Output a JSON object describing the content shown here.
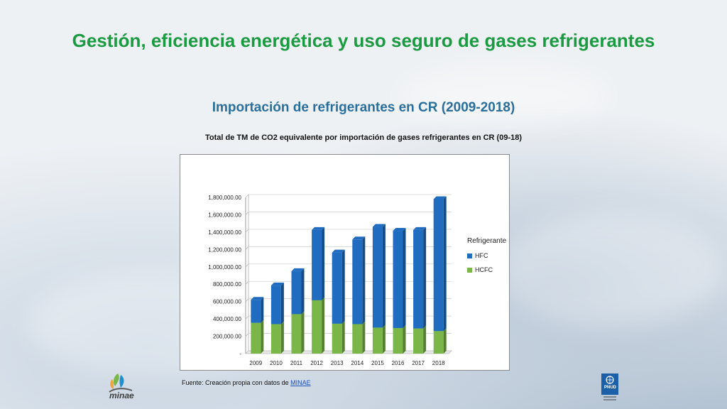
{
  "slide": {
    "title": "Gestión, eficiencia energética y uso seguro de gases refrigerantes",
    "subtitle": "Importación de refrigerantes en CR (2009-2018)",
    "chart_caption": "Total de TM de CO2 equivalente por importación de gases refrigerantes en CR (09-18)",
    "source_prefix": "Fuente: Creación propia con datos de ",
    "source_link": "MINAE",
    "logo_left_text": "minae",
    "logo_left_icon": "hand-leaf-icon",
    "logo_right_icon": "undp-icon",
    "logo_right_text": "PNUD"
  },
  "chart_data": {
    "type": "bar",
    "stacked": true,
    "title": "",
    "xlabel": "",
    "ylabel": "",
    "categories": [
      "2009",
      "2010",
      "2011",
      "2012",
      "2013",
      "2014",
      "2015",
      "2016",
      "2017",
      "2018"
    ],
    "series": [
      {
        "name": "HCFC",
        "color": "#7ab648",
        "values": [
          355000,
          340000,
          455000,
          615000,
          345000,
          340000,
          300000,
          295000,
          290000,
          260000
        ]
      },
      {
        "name": "HFC",
        "color": "#1f6cc0",
        "values": [
          265000,
          445000,
          495000,
          810000,
          820000,
          975000,
          1160000,
          1120000,
          1135000,
          1520000
        ]
      }
    ],
    "ylim": [
      0,
      1800000
    ],
    "yticks": [
      {
        "value": 0,
        "label": "-"
      },
      {
        "value": 200000,
        "label": "200,000.00"
      },
      {
        "value": 400000,
        "label": "400,000.00"
      },
      {
        "value": 600000,
        "label": "600,000.00"
      },
      {
        "value": 800000,
        "label": "800,000.00"
      },
      {
        "value": 1000000,
        "label": "1,000,000.00"
      },
      {
        "value": 1200000,
        "label": "1,200,000.00"
      },
      {
        "value": 1400000,
        "label": "1,400,000.00"
      },
      {
        "value": 1600000,
        "label": "1,600,000.00"
      },
      {
        "value": 1800000,
        "label": "1,800,000.00"
      }
    ],
    "grid": true,
    "legend": {
      "title": "Refrigerante",
      "position": "right",
      "entries": [
        {
          "name": "HFC",
          "color": "#1f6cc0"
        },
        {
          "name": "HCFC",
          "color": "#7ab648"
        }
      ]
    }
  }
}
